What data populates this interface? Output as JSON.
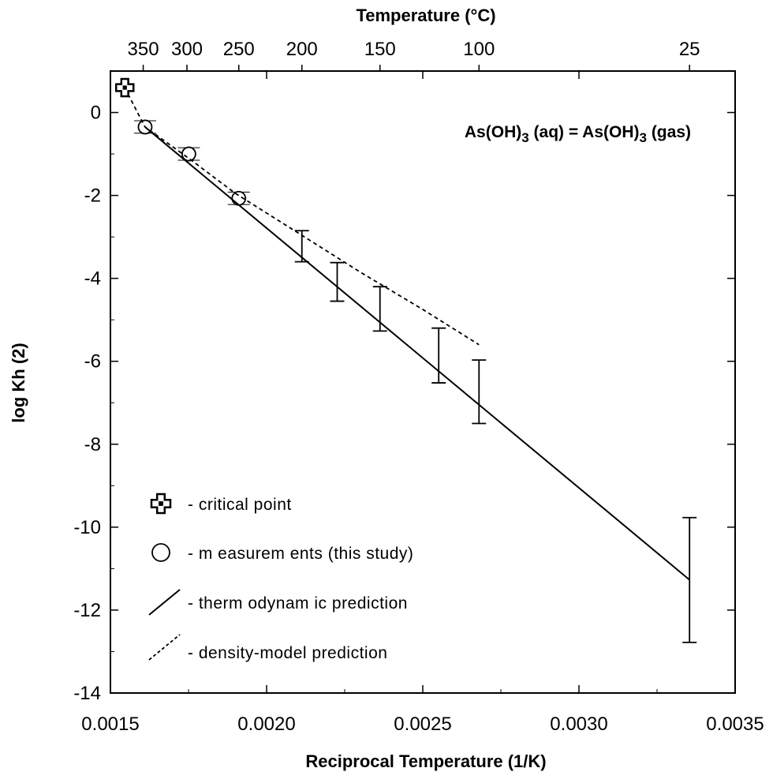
{
  "chart_data": {
    "type": "scatter",
    "title": "As(OH)3 (aq) = As(OH)3  (gas)",
    "title_parts": {
      "lhs": "As(OH)",
      "lhs_sub": "3",
      "mid": " (aq) = As(OH)",
      "rhs_sub": "3",
      "rhs": "  (gas)"
    },
    "xlabel": "Reciprocal Temperature (1/K)",
    "ylabel": "log Kh (2)",
    "top_xlabel": "Temperature (°C)",
    "xlim": [
      0.0015,
      0.0035
    ],
    "ylim": [
      -14,
      1
    ],
    "x_ticks": [
      0.0015,
      0.002,
      0.0025,
      0.003,
      0.0035
    ],
    "x_tick_labels": [
      "0.0015",
      "0.0020",
      "0.0025",
      "0.0030",
      "0.0035"
    ],
    "y_ticks": [
      0,
      -2,
      -4,
      -6,
      -8,
      -10,
      -12,
      -14
    ],
    "y_tick_labels": [
      "0",
      "-2",
      "-4",
      "-6",
      "-8",
      "-10",
      "-12",
      "-14"
    ],
    "top_ticks": [
      {
        "label": "350",
        "inv_T": 0.001605
      },
      {
        "label": "300",
        "inv_T": 0.001745
      },
      {
        "label": "250",
        "inv_T": 0.001911
      },
      {
        "label": "200",
        "inv_T": 0.002113
      },
      {
        "label": "150",
        "inv_T": 0.002363
      },
      {
        "label": "100",
        "inv_T": 0.00268
      },
      {
        "label": "25",
        "inv_T": 0.003354
      }
    ],
    "grid": false,
    "series": [
      {
        "name": "critical point",
        "kind": "cross-marker",
        "points": [
          {
            "x": 0.001546,
            "y": 0.6
          }
        ]
      },
      {
        "name": "measurements (this study)",
        "kind": "circle-marker",
        "points": [
          {
            "x": 0.001611,
            "y": -0.35,
            "err": 0.15
          },
          {
            "x": 0.001751,
            "y": -1.0,
            "err": 0.15
          },
          {
            "x": 0.001911,
            "y": -2.07,
            "err": 0.15
          }
        ]
      },
      {
        "name": "thermodynamic prediction",
        "kind": "line-solid",
        "points": [
          {
            "x": 0.001611,
            "y": -0.35
          },
          {
            "x": 0.003354,
            "y": -11.27
          }
        ],
        "error_bars": [
          {
            "x": 0.002113,
            "low": -3.6,
            "high": -2.85
          },
          {
            "x": 0.002226,
            "low": -4.55,
            "high": -3.62
          },
          {
            "x": 0.002363,
            "low": -5.27,
            "high": -4.2
          },
          {
            "x": 0.002551,
            "low": -6.52,
            "high": -5.2
          },
          {
            "x": 0.00268,
            "low": -7.5,
            "high": -5.97
          },
          {
            "x": 0.003354,
            "low": -12.78,
            "high": -9.77
          }
        ]
      },
      {
        "name": "density-model prediction",
        "kind": "line-dashed",
        "points": [
          {
            "x": 0.001546,
            "y": 0.6
          },
          {
            "x": 0.00159,
            "y": -0.05
          },
          {
            "x": 0.001611,
            "y": -0.35
          },
          {
            "x": 0.00175,
            "y": -1.1
          },
          {
            "x": 0.0019,
            "y": -1.95
          },
          {
            "x": 0.0021,
            "y": -2.9
          },
          {
            "x": 0.0023,
            "y": -3.85
          },
          {
            "x": 0.0025,
            "y": -4.75
          },
          {
            "x": 0.00268,
            "y": -5.6
          }
        ]
      }
    ],
    "legend": {
      "placement": "bottom-left",
      "items": [
        {
          "marker": "cross",
          "label": "- critical point"
        },
        {
          "marker": "circle",
          "label": "- m easurem ents (this study)"
        },
        {
          "marker": "line-solid",
          "label": "- therm odynam ic prediction"
        },
        {
          "marker": "line-dashed",
          "label": "- density-model prediction"
        }
      ]
    }
  }
}
